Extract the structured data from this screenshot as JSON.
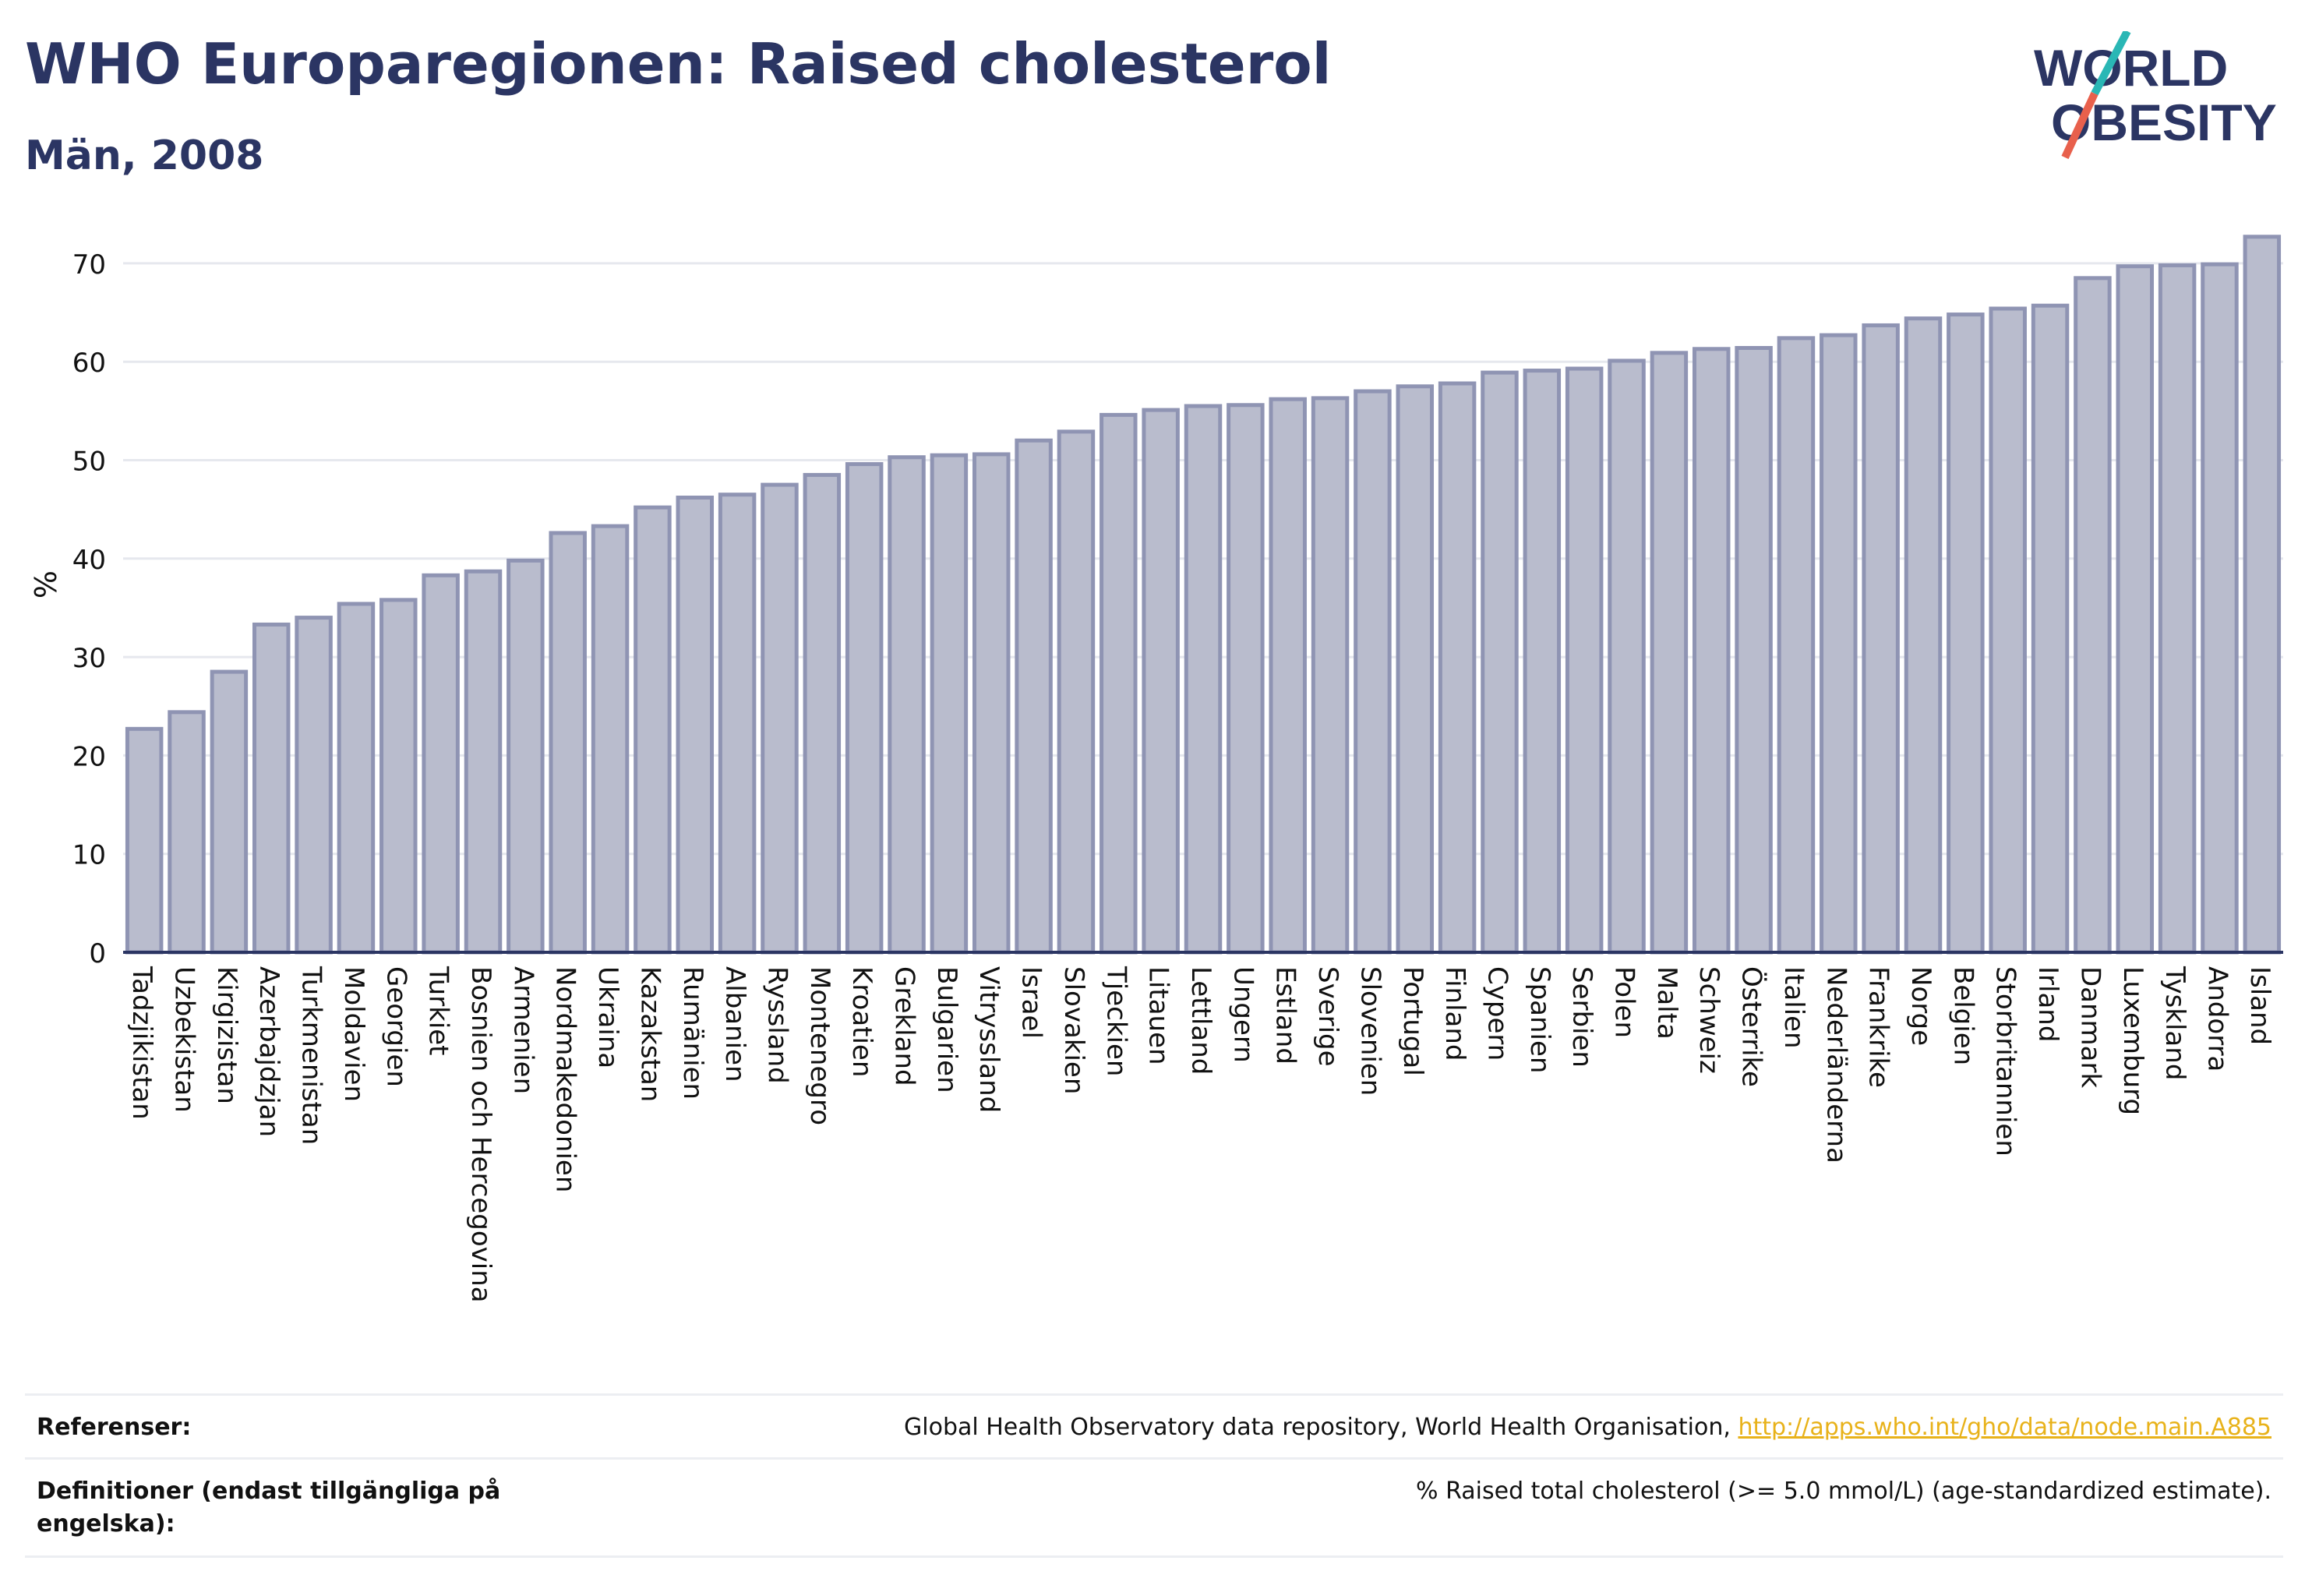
{
  "header": {
    "title": "WHO Europaregionen: Raised cholesterol",
    "subtitle": "Män, 2008"
  },
  "logo": {
    "line1": "WORLD",
    "line2": "OBESITY"
  },
  "colors": {
    "bar_fill": "#b9bccd",
    "bar_stroke": "#8f94b3",
    "text": "#2b3563",
    "link": "#e8b21a",
    "logo_teal": "#2ab7b5",
    "logo_red": "#e8604c"
  },
  "chart_data": {
    "type": "bar",
    "ylabel": "%",
    "ylim": [
      0,
      73
    ],
    "yticks": [
      0,
      10,
      20,
      30,
      40,
      50,
      60,
      70
    ],
    "grid": true,
    "categories": [
      "Tadzjikistan",
      "Uzbekistan",
      "Kirgizistan",
      "Azerbajdzjan",
      "Turkmenistan",
      "Moldavien",
      "Georgien",
      "Turkiet",
      "Bosnien och Hercegovina",
      "Armenien",
      "Nordmakedonien",
      "Ukraina",
      "Kazakstan",
      "Rumänien",
      "Albanien",
      "Ryssland",
      "Montenegro",
      "Kroatien",
      "Grekland",
      "Bulgarien",
      "Vitryssland",
      "Israel",
      "Slovakien",
      "Tjeckien",
      "Litauen",
      "Lettland",
      "Ungern",
      "Estland",
      "Sverige",
      "Slovenien",
      "Portugal",
      "Finland",
      "Cypern",
      "Spanien",
      "Serbien",
      "Polen",
      "Malta",
      "Schweiz",
      "Österrike",
      "Italien",
      "Nederländerna",
      "Frankrike",
      "Norge",
      "Belgien",
      "Storbritannien",
      "Irland",
      "Danmark",
      "Luxemburg",
      "Tyskland",
      "Andorra",
      "Island"
    ],
    "values": [
      22.7,
      24.4,
      28.5,
      33.3,
      34.0,
      35.4,
      35.8,
      38.3,
      38.7,
      39.8,
      42.6,
      43.3,
      45.2,
      46.2,
      46.5,
      47.5,
      48.5,
      49.6,
      50.3,
      50.5,
      50.6,
      52.0,
      52.9,
      54.6,
      55.1,
      55.5,
      55.6,
      56.2,
      56.3,
      57.0,
      57.5,
      57.8,
      58.9,
      59.1,
      59.3,
      60.1,
      60.9,
      61.3,
      61.4,
      62.4,
      62.7,
      63.7,
      64.4,
      64.8,
      65.4,
      65.7,
      68.5,
      69.7,
      69.8,
      69.9,
      72.7
    ]
  },
  "footer": {
    "references_label": "Referenser:",
    "references_text": "Global Health Observatory data repository, World Health Organisation, ",
    "references_link": "http://apps.who.int/gho/data/node.main.A885",
    "definitions_label": "Definitioner (endast tillgängliga på engelska):",
    "definitions_text": "% Raised total cholesterol (>= 5.0 mmol/L) (age-standardized estimate)."
  }
}
